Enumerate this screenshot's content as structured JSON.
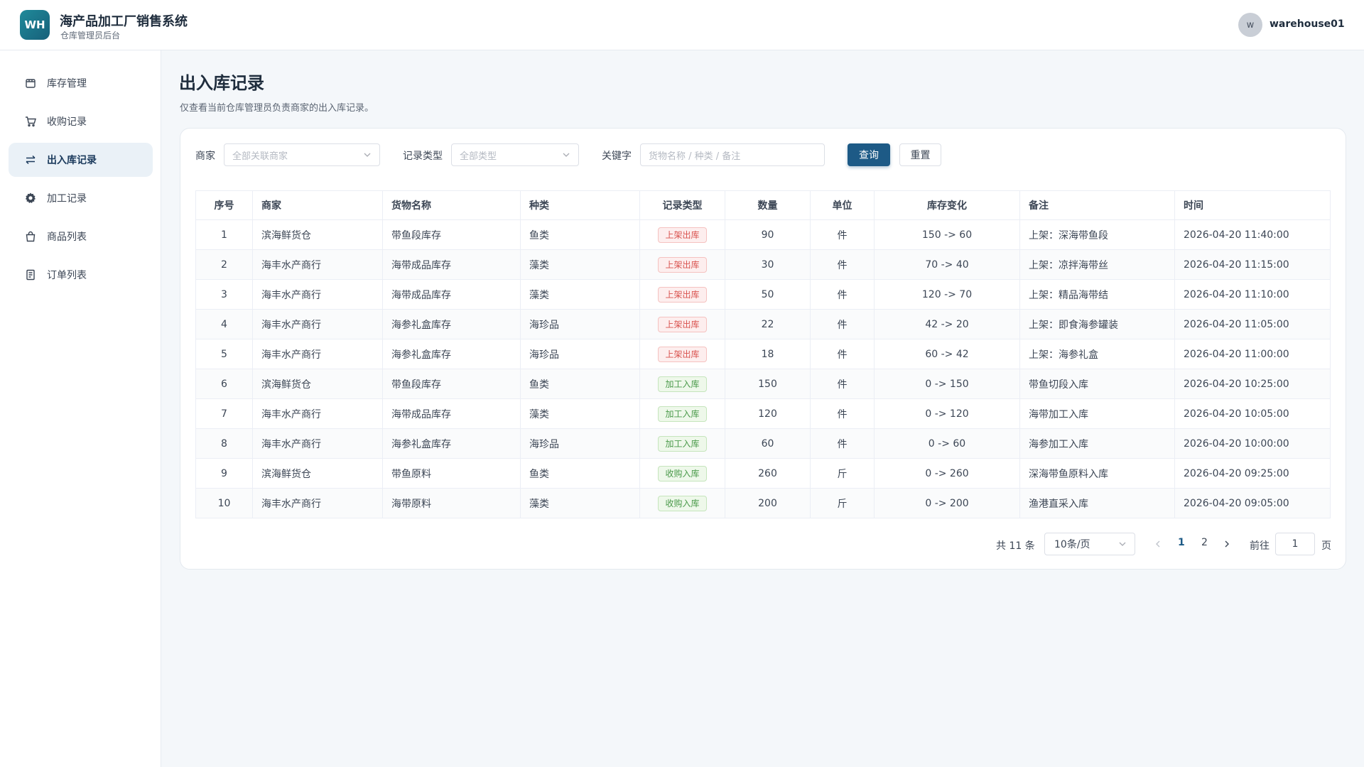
{
  "header": {
    "logo_text": "WH",
    "title": "海产品加工厂销售系统",
    "subtitle": "仓库管理员后台",
    "user_initial": "w",
    "user_name": "warehouse01"
  },
  "sidebar": {
    "items": [
      {
        "label": "库存管理",
        "icon": "box-icon",
        "active": false
      },
      {
        "label": "收购记录",
        "icon": "cart-icon",
        "active": false
      },
      {
        "label": "出入库记录",
        "icon": "swap-icon",
        "active": true
      },
      {
        "label": "加工记录",
        "icon": "gear-icon",
        "active": false
      },
      {
        "label": "商品列表",
        "icon": "bag-icon",
        "active": false
      },
      {
        "label": "订单列表",
        "icon": "document-icon",
        "active": false
      }
    ]
  },
  "page": {
    "title": "出入库记录",
    "description": "仅查看当前仓库管理员负责商家的出入库记录。"
  },
  "filters": {
    "merchant_label": "商家",
    "merchant_placeholder": "全部关联商家",
    "type_label": "记录类型",
    "type_placeholder": "全部类型",
    "keyword_label": "关键字",
    "keyword_placeholder": "货物名称 / 种类 / 备注",
    "search_button": "查询",
    "reset_button": "重置"
  },
  "table": {
    "columns": [
      "序号",
      "商家",
      "货物名称",
      "种类",
      "记录类型",
      "数量",
      "单位",
      "库存变化",
      "备注",
      "时间"
    ],
    "rows": [
      {
        "no": "1",
        "merchant": "滨海鲜货仓",
        "goods": "带鱼段库存",
        "category": "鱼类",
        "type": "上架出库",
        "type_kind": "out",
        "qty": "90",
        "unit": "件",
        "change": "150 -> 60",
        "note": "上架：深海带鱼段",
        "time": "2026-04-20 11:40:00"
      },
      {
        "no": "2",
        "merchant": "海丰水产商行",
        "goods": "海带成品库存",
        "category": "藻类",
        "type": "上架出库",
        "type_kind": "out",
        "qty": "30",
        "unit": "件",
        "change": "70 -> 40",
        "note": "上架：凉拌海带丝",
        "time": "2026-04-20 11:15:00"
      },
      {
        "no": "3",
        "merchant": "海丰水产商行",
        "goods": "海带成品库存",
        "category": "藻类",
        "type": "上架出库",
        "type_kind": "out",
        "qty": "50",
        "unit": "件",
        "change": "120 -> 70",
        "note": "上架：精品海带结",
        "time": "2026-04-20 11:10:00"
      },
      {
        "no": "4",
        "merchant": "海丰水产商行",
        "goods": "海参礼盒库存",
        "category": "海珍品",
        "type": "上架出库",
        "type_kind": "out",
        "qty": "22",
        "unit": "件",
        "change": "42 -> 20",
        "note": "上架：即食海参罐装",
        "time": "2026-04-20 11:05:00"
      },
      {
        "no": "5",
        "merchant": "海丰水产商行",
        "goods": "海参礼盒库存",
        "category": "海珍品",
        "type": "上架出库",
        "type_kind": "out",
        "qty": "18",
        "unit": "件",
        "change": "60 -> 42",
        "note": "上架：海参礼盒",
        "time": "2026-04-20 11:00:00"
      },
      {
        "no": "6",
        "merchant": "滨海鲜货仓",
        "goods": "带鱼段库存",
        "category": "鱼类",
        "type": "加工入库",
        "type_kind": "in",
        "qty": "150",
        "unit": "件",
        "change": "0 -> 150",
        "note": "带鱼切段入库",
        "time": "2026-04-20 10:25:00"
      },
      {
        "no": "7",
        "merchant": "海丰水产商行",
        "goods": "海带成品库存",
        "category": "藻类",
        "type": "加工入库",
        "type_kind": "in",
        "qty": "120",
        "unit": "件",
        "change": "0 -> 120",
        "note": "海带加工入库",
        "time": "2026-04-20 10:05:00"
      },
      {
        "no": "8",
        "merchant": "海丰水产商行",
        "goods": "海参礼盒库存",
        "category": "海珍品",
        "type": "加工入库",
        "type_kind": "in",
        "qty": "60",
        "unit": "件",
        "change": "0 -> 60",
        "note": "海参加工入库",
        "time": "2026-04-20 10:00:00"
      },
      {
        "no": "9",
        "merchant": "滨海鲜货仓",
        "goods": "带鱼原料",
        "category": "鱼类",
        "type": "收购入库",
        "type_kind": "in",
        "qty": "260",
        "unit": "斤",
        "change": "0 -> 260",
        "note": "深海带鱼原料入库",
        "time": "2026-04-20 09:25:00"
      },
      {
        "no": "10",
        "merchant": "海丰水产商行",
        "goods": "海带原料",
        "category": "藻类",
        "type": "收购入库",
        "type_kind": "in",
        "qty": "200",
        "unit": "斤",
        "change": "0 -> 200",
        "note": "渔港直采入库",
        "time": "2026-04-20 09:05:00"
      }
    ]
  },
  "tag_colors": {
    "out": {
      "text": "#d9534f",
      "bg": "#fdeeee",
      "border": "#f5c2c0"
    },
    "in": {
      "text": "#4a9a4a",
      "bg": "#eef8ea",
      "border": "#c5e5bc"
    }
  },
  "pagination": {
    "total_text": "共 11 条",
    "page_size": "10条/页",
    "pages": [
      "1",
      "2"
    ],
    "current_page": "1",
    "goto_label": "前往",
    "goto_value": "1",
    "page_suffix": "页"
  }
}
